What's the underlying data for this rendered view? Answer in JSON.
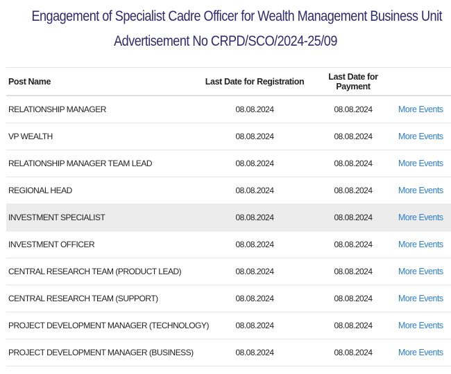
{
  "header": {
    "title_line1": "Engagement of Specialist Cadre Officer for Wealth Management Business Unit",
    "title_line2": "Advertisement No CRPD/SCO/2024-25/09"
  },
  "table": {
    "columns": {
      "post_name": "Post Name",
      "last_date_registration": "Last Date for Registration",
      "last_date_payment": "Last Date for Payment",
      "action": ""
    },
    "rows": [
      {
        "post": "RELATIONSHIP MANAGER",
        "registration": "08.08.2024",
        "payment": "08.08.2024",
        "link": "More Events"
      },
      {
        "post": "VP WEALTH",
        "registration": "08.08.2024",
        "payment": "08.08.2024",
        "link": "More Events"
      },
      {
        "post": "RELATIONSHIP MANAGER TEAM LEAD",
        "registration": "08.08.2024",
        "payment": "08.08.2024",
        "link": "More Events"
      },
      {
        "post": "REGIONAL HEAD",
        "registration": "08.08.2024",
        "payment": "08.08.2024",
        "link": "More Events"
      },
      {
        "post": "INVESTMENT SPECIALIST",
        "registration": "08.08.2024",
        "payment": "08.08.2024",
        "link": "More Events"
      },
      {
        "post": "INVESTMENT OFFICER",
        "registration": "08.08.2024",
        "payment": "08.08.2024",
        "link": "More Events"
      },
      {
        "post": "CENTRAL RESEARCH TEAM (PRODUCT LEAD)",
        "registration": "08.08.2024",
        "payment": "08.08.2024",
        "link": "More Events"
      },
      {
        "post": "CENTRAL RESEARCH TEAM (SUPPORT)",
        "registration": "08.08.2024",
        "payment": "08.08.2024",
        "link": "More Events"
      },
      {
        "post": "PROJECT DEVELOPMENT MANAGER (TECHNOLOGY)",
        "registration": "08.08.2024",
        "payment": "08.08.2024",
        "link": "More Events"
      },
      {
        "post": "PROJECT DEVELOPMENT MANAGER (BUSINESS)",
        "registration": "08.08.2024",
        "payment": "08.08.2024",
        "link": "More Events"
      }
    ],
    "highlighted_row_index": 4
  },
  "colors": {
    "title": "#2f2a6e",
    "link": "#2b7fd0",
    "highlight_row": "#ececec"
  }
}
